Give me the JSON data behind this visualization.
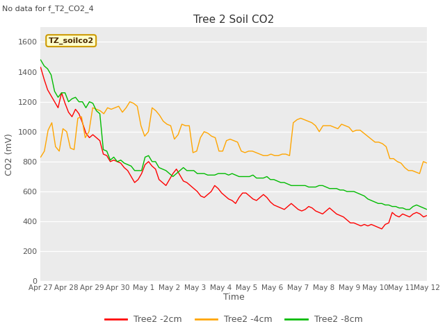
{
  "title": "Tree 2 Soil CO2",
  "subtitle": "No data for f_T2_CO2_4",
  "ylabel": "CO2 (mV)",
  "xlabel": "Time",
  "legend_label": "TZ_soilco2",
  "ylim": [
    0,
    1700
  ],
  "yticks": [
    0,
    200,
    400,
    600,
    800,
    1000,
    1200,
    1400,
    1600
  ],
  "series_labels": [
    "Tree2 -2cm",
    "Tree2 -4cm",
    "Tree2 -8cm"
  ],
  "series_colors": [
    "#ff0000",
    "#ffa500",
    "#00bb00"
  ],
  "plot_bg_color": "#ebebeb",
  "grid_color": "#ffffff",
  "xtick_labels": [
    "Apr 27",
    "Apr 28",
    "Apr 29",
    "Apr 30",
    "May 1",
    "May 2",
    "May 3",
    "May 4",
    "May 5",
    "May 6",
    "May 7",
    "May 8",
    "May 9",
    "May 10",
    "May 11",
    "May 12"
  ],
  "red_2cm": [
    1430,
    1350,
    1280,
    1240,
    1200,
    1160,
    1260,
    1190,
    1130,
    1100,
    1150,
    1120,
    1060,
    990,
    960,
    980,
    960,
    940,
    850,
    840,
    800,
    810,
    800,
    790,
    760,
    740,
    700,
    660,
    680,
    720,
    780,
    800,
    770,
    750,
    680,
    660,
    640,
    680,
    720,
    750,
    710,
    670,
    660,
    640,
    620,
    600,
    570,
    560,
    580,
    600,
    640,
    620,
    590,
    570,
    550,
    540,
    520,
    560,
    590,
    590,
    570,
    550,
    540,
    560,
    580,
    560,
    530,
    510,
    500,
    490,
    480,
    500,
    520,
    500,
    480,
    470,
    480,
    500,
    490,
    470,
    460,
    450,
    470,
    490,
    470,
    450,
    440,
    430,
    410,
    390,
    390,
    380,
    370,
    380,
    370,
    380,
    370,
    360,
    350,
    380,
    390,
    460,
    440,
    430,
    450,
    440,
    430,
    450,
    460,
    450,
    430,
    440
  ],
  "orange_4cm": [
    830,
    870,
    1010,
    1060,
    900,
    870,
    1020,
    1000,
    890,
    880,
    1090,
    1100,
    960,
    1000,
    1160,
    1150,
    1140,
    1120,
    1160,
    1150,
    1160,
    1170,
    1130,
    1160,
    1200,
    1190,
    1170,
    1040,
    970,
    1000,
    1160,
    1140,
    1110,
    1070,
    1050,
    1040,
    950,
    980,
    1050,
    1040,
    1040,
    860,
    870,
    960,
    1000,
    990,
    970,
    960,
    870,
    870,
    940,
    950,
    940,
    930,
    870,
    860,
    870,
    870,
    860,
    850,
    840,
    840,
    850,
    840,
    840,
    850,
    850,
    840,
    1060,
    1080,
    1090,
    1080,
    1070,
    1060,
    1040,
    1000,
    1040,
    1040,
    1040,
    1030,
    1020,
    1050,
    1040,
    1030,
    1000,
    1010,
    1010,
    990,
    970,
    950,
    930,
    930,
    920,
    900,
    820,
    820,
    800,
    790,
    760,
    740,
    740,
    730,
    720,
    800,
    790
  ],
  "green_8cm": [
    1480,
    1440,
    1420,
    1380,
    1270,
    1230,
    1260,
    1260,
    1200,
    1220,
    1230,
    1200,
    1200,
    1160,
    1200,
    1190,
    1140,
    1120,
    880,
    870,
    810,
    830,
    800,
    810,
    790,
    780,
    770,
    740,
    740,
    740,
    830,
    840,
    800,
    800,
    760,
    750,
    740,
    720,
    700,
    720,
    740,
    760,
    740,
    740,
    740,
    720,
    720,
    720,
    710,
    710,
    710,
    720,
    720,
    720,
    710,
    720,
    710,
    700,
    700,
    700,
    700,
    710,
    690,
    690,
    690,
    700,
    680,
    680,
    670,
    660,
    660,
    650,
    640,
    640,
    640,
    640,
    640,
    630,
    630,
    630,
    640,
    640,
    630,
    620,
    620,
    620,
    610,
    610,
    600,
    600,
    600,
    590,
    580,
    570,
    550,
    540,
    530,
    520,
    520,
    510,
    510,
    500,
    500,
    490,
    490,
    480,
    480,
    500,
    510,
    500,
    490,
    480
  ]
}
